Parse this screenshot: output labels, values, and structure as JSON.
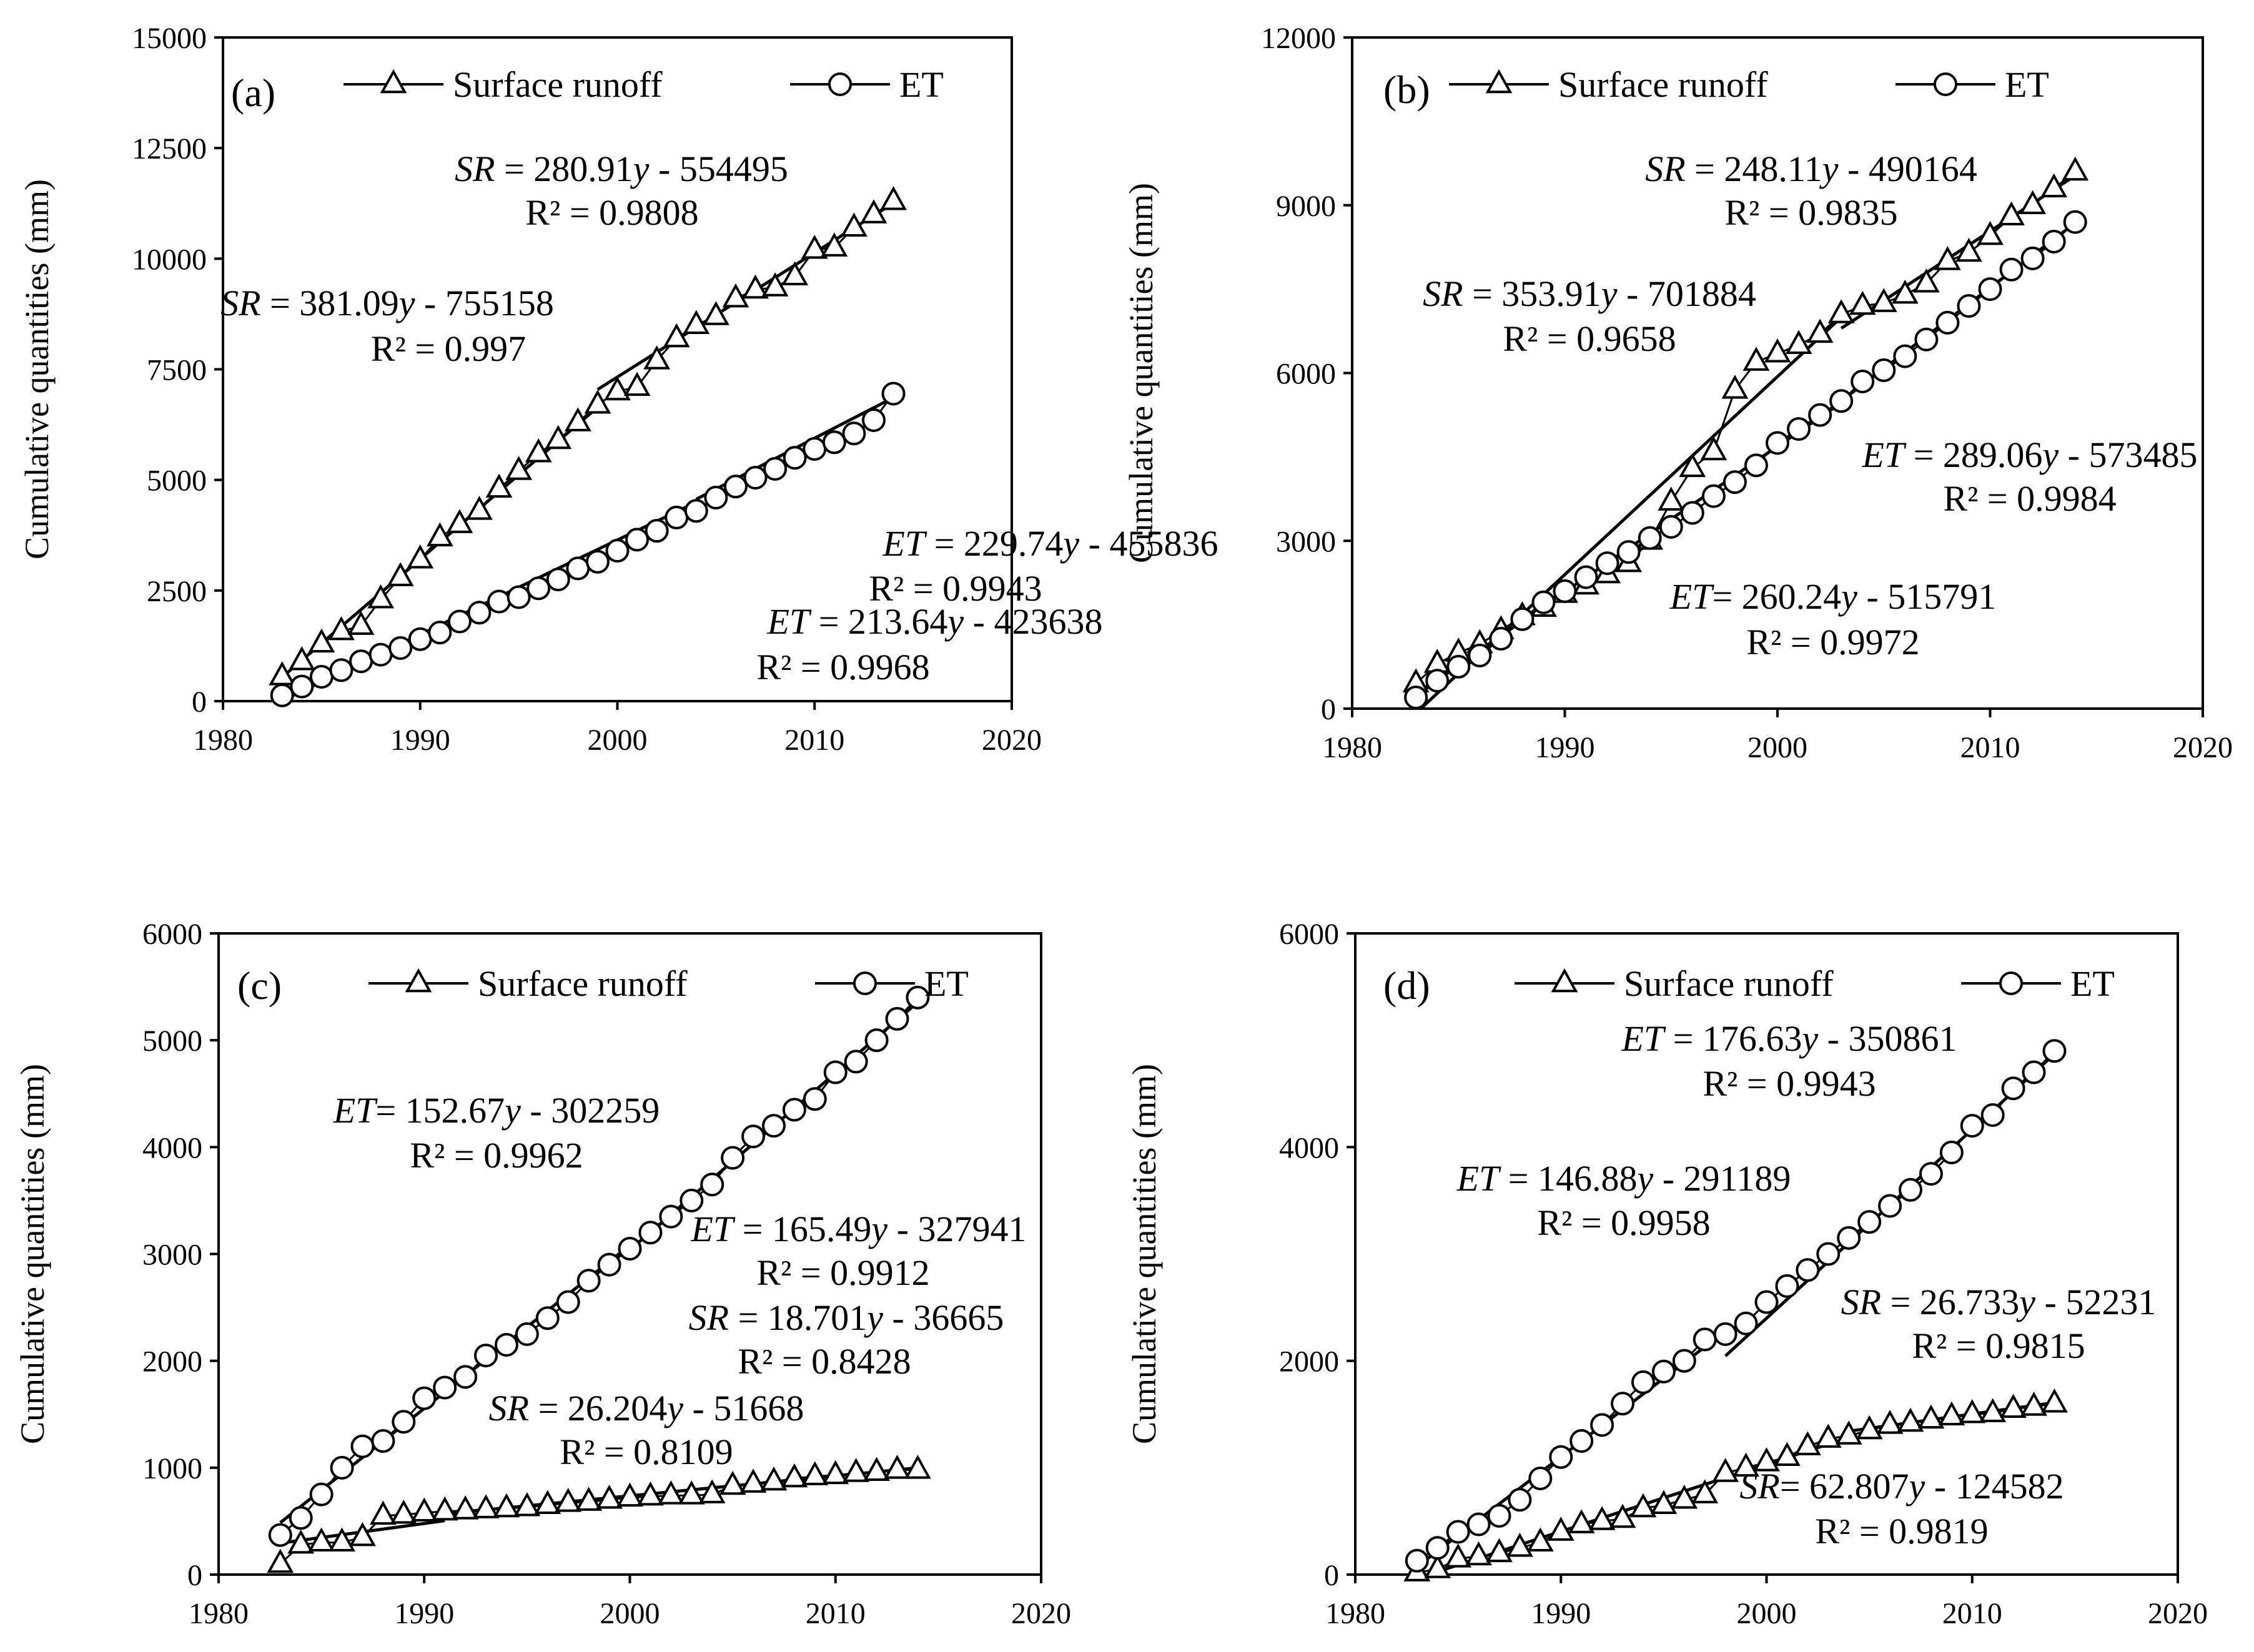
{
  "figure": {
    "ylabel": "Cumulative quantities (mm)"
  },
  "chart_data": [
    {
      "type": "line",
      "panel": "(a)",
      "ylabel": "Cumulative quantities (mm)",
      "xlim": [
        1980,
        2020
      ],
      "ylim": [
        0,
        15000
      ],
      "xticks": [
        "1980",
        "1990",
        "2000",
        "2010",
        "2020"
      ],
      "yticks": [
        "0",
        "2500",
        "5000",
        "7500",
        "10000",
        "12500",
        "15000"
      ],
      "legend": [
        "Surface runoff",
        "ET"
      ],
      "x": [
        1983,
        1984,
        1985,
        1986,
        1987,
        1988,
        1989,
        1990,
        1991,
        1992,
        1993,
        1994,
        1995,
        1996,
        1997,
        1998,
        1999,
        2000,
        2001,
        2002,
        2003,
        2004,
        2005,
        2006,
        2007,
        2008,
        2009,
        2010,
        2011,
        2012,
        2013,
        2014
      ],
      "series": [
        {
          "name": "Surface runoff",
          "marker": "triangle",
          "values": [
            560,
            900,
            1300,
            1580,
            1700,
            2300,
            2800,
            3200,
            3700,
            4000,
            4300,
            4800,
            5200,
            5600,
            5900,
            6300,
            6700,
            7000,
            7100,
            7700,
            8200,
            8500,
            8700,
            9100,
            9300,
            9350,
            9600,
            10200,
            10250,
            10700,
            11000,
            11300
          ]
        },
        {
          "name": "ET",
          "marker": "circle",
          "values": [
            130,
            330,
            550,
            700,
            900,
            1050,
            1200,
            1400,
            1550,
            1800,
            2000,
            2250,
            2350,
            2550,
            2750,
            3000,
            3150,
            3400,
            3650,
            3850,
            4150,
            4300,
            4600,
            4850,
            5050,
            5250,
            5500,
            5700,
            5850,
            6050,
            6350,
            6950
          ]
        }
      ],
      "fits": [
        {
          "series": "Surface runoff",
          "x_range": [
            1983,
            1999
          ],
          "slope": 381.09,
          "intercept": -755158
        },
        {
          "series": "Surface runoff",
          "x_range": [
            1999,
            2014
          ],
          "slope": 280.91,
          "intercept": -554495
        },
        {
          "series": "ET",
          "x_range": [
            1983,
            2004
          ],
          "slope": 213.64,
          "intercept": -423638
        },
        {
          "series": "ET",
          "x_range": [
            2004,
            2014
          ],
          "slope": 229.74,
          "intercept": -455836
        }
      ],
      "annotations": [
        {
          "var": "SR",
          "eq": " = 280.91",
          "v": "y",
          "tail": " - 554495",
          "r2": "R² = 0.9808"
        },
        {
          "var": "SR",
          "eq": " = 381.09",
          "v": "y",
          "tail": " - 755158",
          "r2": "R² = 0.997"
        },
        {
          "var": "ET",
          "eq": " = 229.74",
          "v": "y",
          "tail": " - 455836",
          "r2": "R² = 0.9943"
        },
        {
          "var": "ET",
          "eq": " = 213.64",
          "v": "y",
          "tail": " - 423638",
          "r2": "R² = 0.9968"
        }
      ]
    },
    {
      "type": "line",
      "panel": "(b)",
      "ylabel": "Cumulative quantities (mm)",
      "xlim": [
        1980,
        2020
      ],
      "ylim": [
        0,
        12000
      ],
      "xticks": [
        "1980",
        "1990",
        "2000",
        "2010",
        "2020"
      ],
      "yticks": [
        "0",
        "3000",
        "6000",
        "9000",
        "12000"
      ],
      "legend": [
        "Surface runoff",
        "ET"
      ],
      "x": [
        1983,
        1984,
        1985,
        1986,
        1987,
        1988,
        1989,
        1990,
        1991,
        1992,
        1993,
        1994,
        1995,
        1996,
        1997,
        1998,
        1999,
        2000,
        2001,
        2002,
        2003,
        2004,
        2005,
        2006,
        2007,
        2008,
        2009,
        2010,
        2011,
        2012,
        2013,
        2014
      ],
      "series": [
        {
          "name": "Surface runoff",
          "marker": "triangle",
          "values": [
            450,
            800,
            1000,
            1150,
            1400,
            1650,
            1800,
            2050,
            2200,
            2400,
            2600,
            3000,
            3700,
            4300,
            4600,
            5700,
            6200,
            6350,
            6500,
            6700,
            7050,
            7200,
            7250,
            7400,
            7600,
            8000,
            8150,
            8450,
            8800,
            9000,
            9300,
            9600
          ]
        },
        {
          "name": "ET",
          "marker": "circle",
          "values": [
            200,
            500,
            750,
            950,
            1250,
            1600,
            1900,
            2100,
            2350,
            2600,
            2800,
            3050,
            3250,
            3500,
            3800,
            4050,
            4350,
            4750,
            5000,
            5250,
            5500,
            5850,
            6050,
            6300,
            6600,
            6900,
            7200,
            7500,
            7850,
            8050,
            8350,
            8700
          ]
        }
      ],
      "fits": [
        {
          "series": "Surface runoff",
          "x_range": [
            1983.3,
            2003
          ],
          "slope": 353.91,
          "intercept": -701884
        },
        {
          "series": "Surface runoff",
          "x_range": [
            2003,
            2014
          ],
          "slope": 248.11,
          "intercept": -490164
        },
        {
          "series": "ET",
          "x_range": [
            1983,
            2003
          ],
          "slope": 260.24,
          "intercept": -515791
        },
        {
          "series": "ET",
          "x_range": [
            2003,
            2014
          ],
          "slope": 289.06,
          "intercept": -573485
        }
      ],
      "annotations": [
        {
          "var": "SR",
          "eq": " = 248.11",
          "v": "y",
          "tail": " - 490164",
          "r2": "R² = 0.9835"
        },
        {
          "var": "SR",
          "eq": " = 353.91",
          "v": "y",
          "tail": " - 701884",
          "r2": "R² = 0.9658"
        },
        {
          "var": "ET",
          "eq": " = 289.06",
          "v": "y",
          "tail": " - 573485",
          "r2": "R² = 0.9984"
        },
        {
          "var": "ET",
          "eq": "= 260.24",
          "v": "y",
          "tail": " - 515791",
          "r2": "R² = 0.9972"
        }
      ]
    },
    {
      "type": "line",
      "panel": "(c)",
      "ylabel": "Cumulative quantities (mm)",
      "xlim": [
        1980,
        2020
      ],
      "ylim": [
        0,
        6000
      ],
      "xticks": [
        "1980",
        "1990",
        "2000",
        "2010",
        "2020"
      ],
      "yticks": [
        "0",
        "1000",
        "2000",
        "3000",
        "4000",
        "5000",
        "6000"
      ],
      "legend": [
        "Surface runoff",
        "ET"
      ],
      "x": [
        1983,
        1984,
        1985,
        1986,
        1987,
        1988,
        1989,
        1990,
        1991,
        1992,
        1993,
        1994,
        1995,
        1996,
        1997,
        1998,
        1999,
        2000,
        2001,
        2002,
        2003,
        2004,
        2005,
        2006,
        2007,
        2008,
        2009,
        2010,
        2011,
        2012,
        2013,
        2014
      ],
      "series": [
        {
          "name": "Surface runoff",
          "marker": "triangle",
          "values": [
            100,
            280,
            300,
            300,
            350,
            550,
            560,
            580,
            590,
            600,
            610,
            620,
            630,
            650,
            670,
            680,
            700,
            720,
            730,
            740,
            740,
            750,
            830,
            850,
            870,
            900,
            920,
            930,
            950,
            960,
            980,
            980
          ]
        },
        {
          "name": "ET",
          "marker": "circle",
          "values": [
            370,
            530,
            750,
            1000,
            1200,
            1250,
            1430,
            1650,
            1750,
            1850,
            2050,
            2150,
            2250,
            2400,
            2550,
            2750,
            2900,
            3050,
            3200,
            3350,
            3500,
            3650,
            3900,
            4100,
            4200,
            4350,
            4450,
            4700,
            4800,
            5000,
            5200,
            5400
          ]
        }
      ],
      "fits": [
        {
          "series": "Surface runoff",
          "x_range": [
            1983,
            1991
          ],
          "slope": 26.204,
          "intercept": -51668
        },
        {
          "series": "Surface runoff",
          "x_range": [
            1991,
            2014
          ],
          "slope": 18.701,
          "intercept": -36665
        },
        {
          "series": "ET",
          "x_range": [
            1983,
            2000
          ],
          "slope": 152.67,
          "intercept": -302259
        },
        {
          "series": "ET",
          "x_range": [
            2000,
            2014
          ],
          "slope": 165.49,
          "intercept": -327941
        }
      ],
      "annotations": [
        {
          "var": "ET",
          "eq": "= 152.67",
          "v": "y",
          "tail": " - 302259",
          "r2": "R² = 0.9962"
        },
        {
          "var": "ET",
          "eq": " = 165.49",
          "v": "y",
          "tail": " - 327941",
          "r2": "R² = 0.9912"
        },
        {
          "var": "SR",
          "eq": " = 18.701",
          "v": "y",
          "tail": " - 36665",
          "r2": "R² = 0.8428"
        },
        {
          "var": "SR",
          "eq": " = 26.204",
          "v": "y",
          "tail": " - 51668",
          "r2": "R² = 0.8109"
        }
      ]
    },
    {
      "type": "line",
      "panel": "(d)",
      "ylabel": "Cumulative quantities (mm)",
      "xlim": [
        1980,
        2020
      ],
      "ylim": [
        0,
        6000
      ],
      "xticks": [
        "1980",
        "1990",
        "2000",
        "2010",
        "2020"
      ],
      "yticks": [
        "0",
        "2000",
        "4000",
        "6000"
      ],
      "legend": [
        "Surface runoff",
        "ET"
      ],
      "x": [
        1983,
        1984,
        1985,
        1986,
        1987,
        1988,
        1989,
        1990,
        1991,
        1992,
        1993,
        1994,
        1995,
        1996,
        1997,
        1998,
        1999,
        2000,
        2001,
        2002,
        2003,
        2004,
        2005,
        2006,
        2007,
        2008,
        2009,
        2010,
        2011,
        2012,
        2013,
        2014
      ],
      "series": [
        {
          "name": "Surface runoff",
          "marker": "triangle",
          "values": [
            20,
            50,
            150,
            170,
            200,
            250,
            300,
            400,
            470,
            500,
            520,
            620,
            650,
            700,
            750,
            950,
            1000,
            1050,
            1100,
            1200,
            1270,
            1300,
            1350,
            1400,
            1420,
            1450,
            1480,
            1500,
            1510,
            1550,
            1570,
            1600
          ]
        },
        {
          "name": "ET",
          "marker": "circle",
          "values": [
            130,
            250,
            400,
            470,
            550,
            700,
            900,
            1100,
            1250,
            1400,
            1600,
            1800,
            1900,
            2000,
            2200,
            2250,
            2350,
            2550,
            2700,
            2850,
            3000,
            3150,
            3300,
            3450,
            3600,
            3750,
            3950,
            4200,
            4300,
            4550,
            4700,
            4900
          ]
        }
      ],
      "fits": [
        {
          "series": "Surface runoff",
          "x_range": [
            1983,
            2004
          ],
          "slope": 62.807,
          "intercept": -124582
        },
        {
          "series": "Surface runoff",
          "x_range": [
            2004,
            2014
          ],
          "slope": 26.733,
          "intercept": -52231
        },
        {
          "series": "ET",
          "x_range": [
            1983,
            1998
          ],
          "slope": 146.88,
          "intercept": -291189
        },
        {
          "series": "ET",
          "x_range": [
            1998,
            2014
          ],
          "slope": 176.63,
          "intercept": -350861
        }
      ],
      "annotations": [
        {
          "var": "ET",
          "eq": " = 176.63",
          "v": "y",
          "tail": " - 350861",
          "r2": "R² = 0.9943"
        },
        {
          "var": "ET",
          "eq": " = 146.88",
          "v": "y",
          "tail": " - 291189",
          "r2": "R² = 0.9958"
        },
        {
          "var": "SR",
          "eq": " = 26.733",
          "v": "y",
          "tail": " - 52231",
          "r2": "R² = 0.9815"
        },
        {
          "var": "SR",
          "eq": "= 62.807",
          "v": "y",
          "tail": " - 124582",
          "r2": "R² = 0.9819"
        }
      ]
    }
  ]
}
